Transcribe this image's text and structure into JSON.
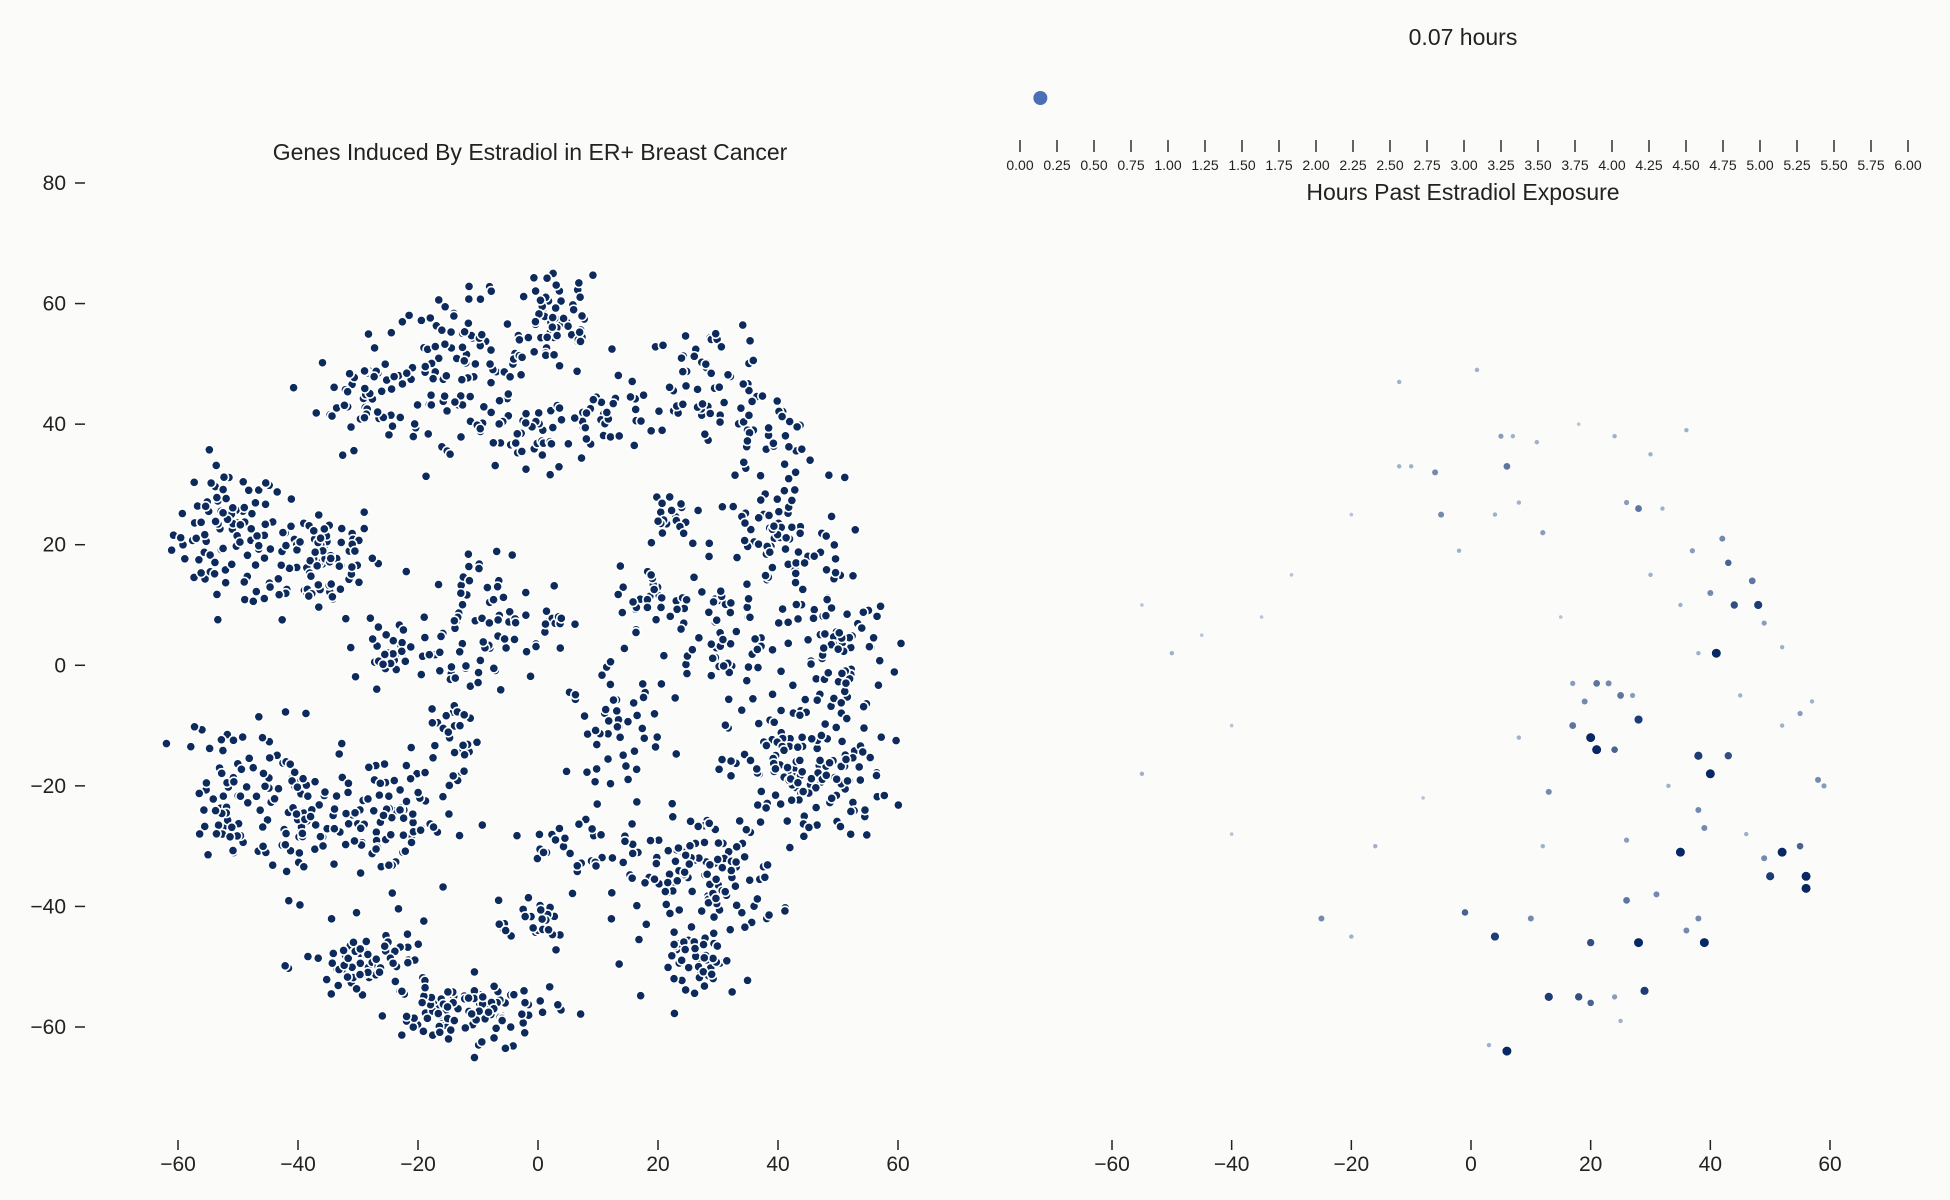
{
  "chart_data": [
    {
      "type": "scatter",
      "title": "Genes Induced By Estradiol in ER+ Breast Cancer",
      "xlim": [
        -65,
        62
      ],
      "ylim": [
        -76,
        84
      ],
      "xticks": [
        -60,
        -40,
        -20,
        0,
        20,
        40,
        60
      ],
      "yticks": [
        80,
        60,
        40,
        20,
        0,
        -20,
        -40,
        -60
      ],
      "xtick_labels": [
        "−60",
        "−40",
        "−20",
        "0",
        "20",
        "40",
        "60"
      ],
      "ytick_labels": [
        "80",
        "60",
        "40",
        "20",
        "0",
        "−20",
        "−40",
        "−60"
      ],
      "grid": false,
      "point_color": "#0d2a5c",
      "edge_color": "#ffffff",
      "clusters": [
        {
          "cx": -52,
          "cy": 22,
          "rx": 8,
          "ry": 10,
          "n": 90
        },
        {
          "cx": -37,
          "cy": 18,
          "rx": 10,
          "ry": 9,
          "n": 95
        },
        {
          "cx": -28,
          "cy": 45,
          "rx": 8,
          "ry": 8,
          "n": 60
        },
        {
          "cx": -13,
          "cy": 50,
          "rx": 10,
          "ry": 10,
          "n": 80
        },
        {
          "cx": 3,
          "cy": 57,
          "rx": 7,
          "ry": 9,
          "n": 65
        },
        {
          "cx": -3,
          "cy": 38,
          "rx": 8,
          "ry": 6,
          "n": 40
        },
        {
          "cx": 12,
          "cy": 40,
          "rx": 8,
          "ry": 6,
          "n": 35
        },
        {
          "cx": 28,
          "cy": 48,
          "rx": 10,
          "ry": 8,
          "n": 55
        },
        {
          "cx": 38,
          "cy": 38,
          "rx": 8,
          "ry": 7,
          "n": 40
        },
        {
          "cx": 40,
          "cy": 20,
          "rx": 10,
          "ry": 10,
          "n": 70
        },
        {
          "cx": 50,
          "cy": 3,
          "rx": 8,
          "ry": 12,
          "n": 80
        },
        {
          "cx": 30,
          "cy": 5,
          "rx": 9,
          "ry": 10,
          "n": 60
        },
        {
          "cx": 45,
          "cy": -18,
          "rx": 12,
          "ry": 10,
          "n": 140
        },
        {
          "cx": 27,
          "cy": -35,
          "rx": 12,
          "ry": 10,
          "n": 130
        },
        {
          "cx": 28,
          "cy": -50,
          "rx": 7,
          "ry": 5,
          "n": 40
        },
        {
          "cx": 13,
          "cy": -10,
          "rx": 7,
          "ry": 8,
          "n": 50
        },
        {
          "cx": -5,
          "cy": -57,
          "rx": 8,
          "ry": 5,
          "n": 40
        },
        {
          "cx": -15,
          "cy": -58,
          "rx": 7,
          "ry": 5,
          "n": 60
        },
        {
          "cx": -28,
          "cy": -50,
          "rx": 10,
          "ry": 6,
          "n": 75
        },
        {
          "cx": -40,
          "cy": -25,
          "rx": 8,
          "ry": 12,
          "n": 80
        },
        {
          "cx": -52,
          "cy": -20,
          "rx": 6,
          "ry": 10,
          "n": 55
        },
        {
          "cx": -25,
          "cy": -25,
          "rx": 10,
          "ry": 10,
          "n": 80
        },
        {
          "cx": -12,
          "cy": 5,
          "rx": 7,
          "ry": 12,
          "n": 65
        },
        {
          "cx": -25,
          "cy": 2,
          "rx": 6,
          "ry": 5,
          "n": 30
        },
        {
          "cx": 0,
          "cy": 8,
          "rx": 5,
          "ry": 5,
          "n": 25
        },
        {
          "cx": -14,
          "cy": -12,
          "rx": 4,
          "ry": 6,
          "n": 25
        },
        {
          "cx": 8,
          "cy": -30,
          "rx": 8,
          "ry": 6,
          "n": 30
        },
        {
          "cx": -2,
          "cy": -42,
          "rx": 8,
          "ry": 5,
          "n": 25
        },
        {
          "cx": 22,
          "cy": 25,
          "rx": 5,
          "ry": 5,
          "n": 20
        },
        {
          "cx": 20,
          "cy": 10,
          "rx": 6,
          "ry": 6,
          "n": 30
        }
      ]
    },
    {
      "type": "scatter",
      "title": "",
      "xlim": [
        -65,
        62
      ],
      "ylim": [
        -76,
        84
      ],
      "xticks": [
        -60,
        -40,
        -20,
        0,
        20,
        40,
        60
      ],
      "xtick_labels": [
        "−60",
        "−40",
        "−20",
        "0",
        "20",
        "40",
        "60"
      ],
      "grid": false,
      "colormap": "Blues",
      "points": [
        [
          -12,
          47,
          0.3
        ],
        [
          1,
          49,
          0.3
        ],
        [
          5,
          38,
          0.4
        ],
        [
          7,
          38,
          0.3
        ],
        [
          11,
          37,
          0.3
        ],
        [
          6,
          33,
          0.6
        ],
        [
          -6,
          32,
          0.5
        ],
        [
          -10,
          33,
          0.3
        ],
        [
          -12,
          33,
          0.3
        ],
        [
          24,
          38,
          0.3
        ],
        [
          36,
          39,
          0.3
        ],
        [
          -5,
          25,
          0.5
        ],
        [
          8,
          27,
          0.3
        ],
        [
          12,
          22,
          0.4
        ],
        [
          26,
          27,
          0.4
        ],
        [
          28,
          26,
          0.6
        ],
        [
          32,
          26,
          0.3
        ],
        [
          37,
          19,
          0.4
        ],
        [
          42,
          21,
          0.5
        ],
        [
          43,
          17,
          0.7
        ],
        [
          40,
          12,
          0.5
        ],
        [
          44,
          10,
          0.8
        ],
        [
          47,
          14,
          0.6
        ],
        [
          48,
          10,
          0.9
        ],
        [
          49,
          7,
          0.4
        ],
        [
          41,
          2,
          1.0
        ],
        [
          38,
          2,
          0.3
        ],
        [
          -2,
          19,
          0.3
        ],
        [
          4,
          25,
          0.3
        ],
        [
          17,
          -3,
          0.4
        ],
        [
          19,
          -6,
          0.5
        ],
        [
          21,
          -3,
          0.6
        ],
        [
          23,
          -3,
          0.5
        ],
        [
          25,
          -5,
          0.6
        ],
        [
          27,
          -5,
          0.4
        ],
        [
          28,
          -9,
          0.9
        ],
        [
          17,
          -10,
          0.6
        ],
        [
          20,
          -12,
          1.0
        ],
        [
          21,
          -14,
          1.0
        ],
        [
          24,
          -14,
          0.7
        ],
        [
          38,
          -15,
          0.9
        ],
        [
          43,
          -15,
          0.8
        ],
        [
          40,
          -18,
          1.0
        ],
        [
          13,
          -21,
          0.5
        ],
        [
          38,
          -24,
          0.5
        ],
        [
          39,
          -27,
          0.5
        ],
        [
          26,
          -29,
          0.4
        ],
        [
          35,
          -31,
          1.0
        ],
        [
          52,
          -31,
          1.0
        ],
        [
          55,
          -30,
          0.7
        ],
        [
          49,
          -32,
          0.5
        ],
        [
          58,
          -19,
          0.5
        ],
        [
          59,
          -20,
          0.4
        ],
        [
          50,
          -35,
          0.9
        ],
        [
          56,
          -35,
          1.0
        ],
        [
          56,
          -37,
          1.0
        ],
        [
          -25,
          -42,
          0.5
        ],
        [
          -1,
          -41,
          0.7
        ],
        [
          4,
          -45,
          0.9
        ],
        [
          10,
          -42,
          0.5
        ],
        [
          20,
          -46,
          0.8
        ],
        [
          26,
          -39,
          0.6
        ],
        [
          31,
          -38,
          0.5
        ],
        [
          28,
          -46,
          1.0
        ],
        [
          36,
          -44,
          0.5
        ],
        [
          38,
          -42,
          0.5
        ],
        [
          39,
          -46,
          1.0
        ],
        [
          13,
          -55,
          0.9
        ],
        [
          18,
          -55,
          0.8
        ],
        [
          20,
          -56,
          0.7
        ],
        [
          24,
          -55,
          0.4
        ],
        [
          29,
          -54,
          0.9
        ],
        [
          25,
          -59,
          0.3
        ],
        [
          6,
          -64,
          1.0
        ],
        [
          3,
          -63,
          0.3
        ],
        [
          -20,
          -45,
          0.3
        ],
        [
          -16,
          -30,
          0.3
        ],
        [
          -55,
          -18,
          0.3
        ],
        [
          -50,
          2,
          0.3
        ],
        [
          -45,
          5,
          0.2
        ],
        [
          -35,
          8,
          0.2
        ],
        [
          -55,
          10,
          0.2
        ],
        [
          -40,
          -28,
          0.2
        ],
        [
          30,
          15,
          0.3
        ],
        [
          45,
          -5,
          0.3
        ],
        [
          52,
          -10,
          0.3
        ],
        [
          55,
          -8,
          0.4
        ],
        [
          35,
          10,
          0.3
        ],
        [
          33,
          -20,
          0.3
        ],
        [
          46,
          -28,
          0.3
        ],
        [
          12,
          -30,
          0.3
        ],
        [
          8,
          -12,
          0.3
        ],
        [
          -8,
          -22,
          0.2
        ],
        [
          15,
          8,
          0.2
        ],
        [
          -30,
          15,
          0.2
        ],
        [
          -20,
          25,
          0.2
        ],
        [
          52,
          3,
          0.3
        ],
        [
          57,
          -6,
          0.3
        ],
        [
          30,
          35,
          0.3
        ],
        [
          18,
          40,
          0.2
        ],
        [
          -40,
          -10,
          0.2
        ]
      ]
    }
  ],
  "time_slider": {
    "title": "0.07 hours",
    "label": "Hours Past Estradiol Exposure",
    "min": 0,
    "max": 6,
    "value": 0.07,
    "tick_labels": [
      "0.00",
      "0.25",
      "0.50",
      "0.75",
      "1.00",
      "1.25",
      "1.50",
      "1.75",
      "2.00",
      "2.25",
      "2.50",
      "2.75",
      "3.00",
      "3.25",
      "3.50",
      "3.75",
      "4.00",
      "4.25",
      "4.50",
      "4.75",
      "5.00",
      "5.25",
      "5.50",
      "5.75",
      "6.00"
    ],
    "handle_color": "#4a6fb5"
  }
}
